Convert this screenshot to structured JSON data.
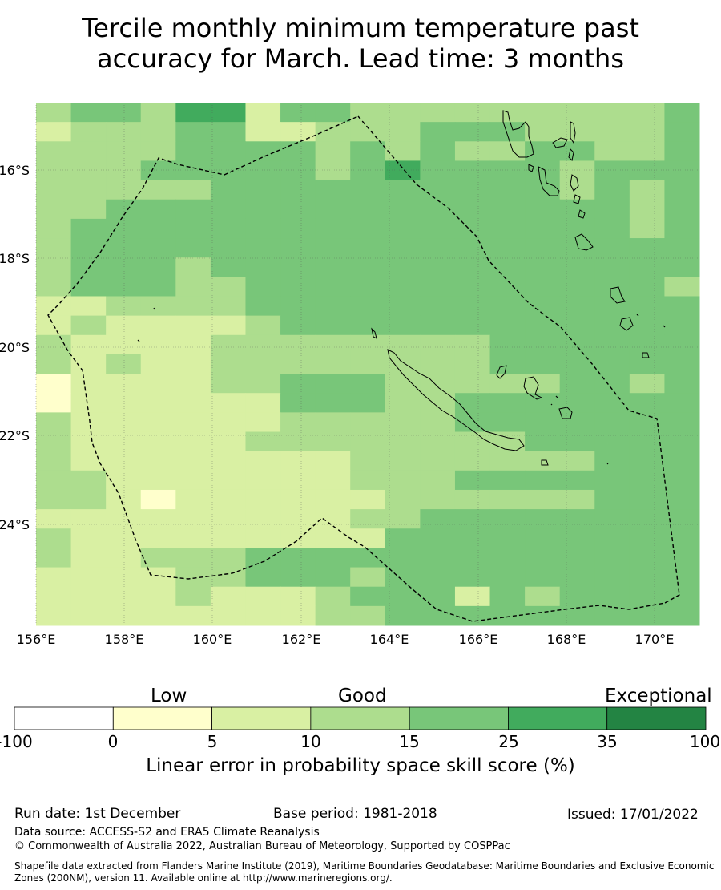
{
  "title_line1": "Tercile monthly minimum temperature past",
  "title_line2": "accuracy for March. Lead time: 3 months",
  "map": {
    "lon_labels": [
      "156°E",
      "158°E",
      "160°E",
      "162°E",
      "164°E",
      "166°E",
      "168°E",
      "170°E"
    ],
    "lat_labels": [
      "16°S",
      "18°S",
      "20°S",
      "22°S",
      "24°S"
    ],
    "grid": [
      "3443552443333333334",
      "2333442233344433334",
      "3333444434343344334",
      "3334444434544443444",
      "3333344444444443434",
      "3344444444444444434",
      "3444444444444444434",
      "3444444444444444444",
      "3444344444444444444",
      "3444334444444444443",
      "2233334444444444444",
      "2322223444444444444",
      "3222233333333444444",
      "3232233333333444444",
      "1222233444333334434",
      "1222222444334444444",
      "3222222333334444444",
      "3222223333333344444",
      "3222222223333333444",
      "3322222223334444444",
      "3321222222333333444",
      "2222222223344444444",
      "3222222222444444444",
      "3223334444444444444",
      "2222334443444444444",
      "2222322234442434444",
      "2222222233444444444"
    ],
    "colors": {
      "1": "#ffffcc",
      "2": "#d9f0a3",
      "3": "#addd8e",
      "4": "#78c679",
      "5": "#41ab5d",
      "6": "#238443"
    }
  },
  "colorbar": {
    "category_labels": [
      "Low",
      "Good",
      "Exceptional"
    ],
    "ticks": [
      "-100",
      "0",
      "5",
      "10",
      "15",
      "25",
      "35",
      "100"
    ],
    "colors": [
      "#ffffff",
      "#ffffcc",
      "#d9f0a3",
      "#addd8e",
      "#78c679",
      "#41ab5d",
      "#238443"
    ],
    "title": "Linear error in probability space skill score (%)"
  },
  "footer": {
    "run_date": "Run date: 1st December",
    "base_period": "Base period: 1981-2018",
    "issued": "Issued: 17/01/2022",
    "data_source": "Data source: ACCESS-S2 and ERA5 Climate Reanalysis",
    "copyright": "© Commonwealth of Australia 2022, Australian Bureau of Meteorology, Supported by COSPPac",
    "shapefile_line1": "Shapefile data extracted from Flanders Marine Institute (2019), Maritime Boundaries Geodatabase: Maritime Boundaries and Exclusive Economic",
    "shapefile_line2": "Zones (200NM), version 11. Available online at http://www.marineregions.org/."
  }
}
